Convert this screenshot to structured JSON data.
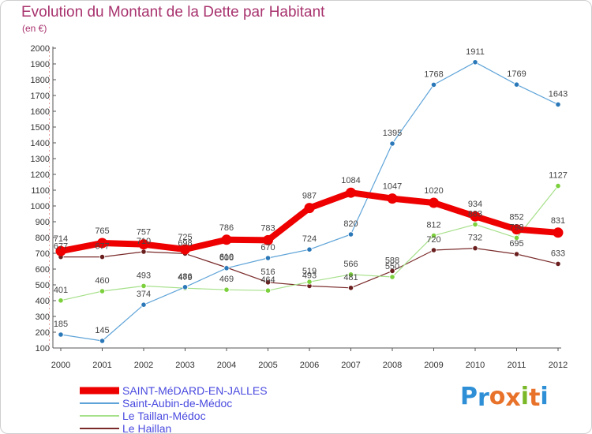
{
  "title": "Evolution du Montant de la Dette par Habitant",
  "subtitle": "(en €)",
  "brand": {
    "letters": [
      "P",
      "r",
      "o",
      "x",
      "i",
      "t",
      "i"
    ],
    "colors": [
      "#2e8fd6",
      "#2e8fd6",
      "#e8722a",
      "#e8722a",
      "#7ab828",
      "#e8722a",
      "#2e8fd6"
    ]
  },
  "chart_data": {
    "type": "line",
    "categories": [
      "2000",
      "2001",
      "2002",
      "2003",
      "2004",
      "2005",
      "2006",
      "2007",
      "2008",
      "2009",
      "2010",
      "2011",
      "2012"
    ],
    "ylim": [
      100,
      2000
    ],
    "yticks": [
      100,
      200,
      300,
      400,
      500,
      600,
      700,
      800,
      900,
      1000,
      1100,
      1200,
      1300,
      1400,
      1500,
      1600,
      1700,
      1800,
      1900,
      2000
    ],
    "grid": false,
    "legend_position": "bottom-left",
    "series": [
      {
        "name": "SAINT-MéDARD-EN-JALLES",
        "color": "#ee0000",
        "marker": "#ee0000",
        "width": 8,
        "values": [
          714,
          765,
          757,
          725,
          786,
          783,
          987,
          1084,
          1047,
          1020,
          934,
          852,
          831
        ]
      },
      {
        "name": "Saint-Aubin-de-Médoc",
        "color": "#5fa4d8",
        "marker": "#2b78b8",
        "width": 1.2,
        "values": [
          185,
          145,
          374,
          486,
          606,
          670,
          724,
          820,
          1395,
          1768,
          1911,
          1769,
          1643
        ]
      },
      {
        "name": "Le Taillan-Médoc",
        "color": "#a6e08a",
        "marker": "#7bd03c",
        "width": 1.2,
        "values": [
          401,
          460,
          493,
          479,
          469,
          464,
          519,
          566,
          550,
          812,
          883,
          798,
          1127
        ]
      },
      {
        "name": "Le Haillan",
        "color": "#7a2a2a",
        "marker": "#6a1e1e",
        "width": 1.2,
        "values": [
          677,
          677,
          710,
          698,
          610,
          516,
          493,
          481,
          588,
          720,
          732,
          695,
          633
        ]
      }
    ],
    "labels": [
      [
        "714",
        "765",
        "757",
        "725",
        "786",
        "783",
        "987",
        "1084",
        "1047",
        "1020",
        "934",
        "852",
        "831"
      ],
      [
        "185",
        "145",
        "374",
        "486",
        "606",
        "670",
        "724",
        "820",
        "1395",
        "1768",
        "1911",
        "1769",
        "1643"
      ],
      [
        "401",
        "460",
        "493",
        "479",
        "469",
        "464",
        "519",
        "566",
        "550",
        "812",
        "883",
        "798",
        "1127"
      ],
      [
        "677",
        "677",
        "710",
        "698",
        "610",
        "516",
        "493",
        "481",
        "588",
        "720",
        "732",
        "695",
        "633"
      ]
    ]
  }
}
